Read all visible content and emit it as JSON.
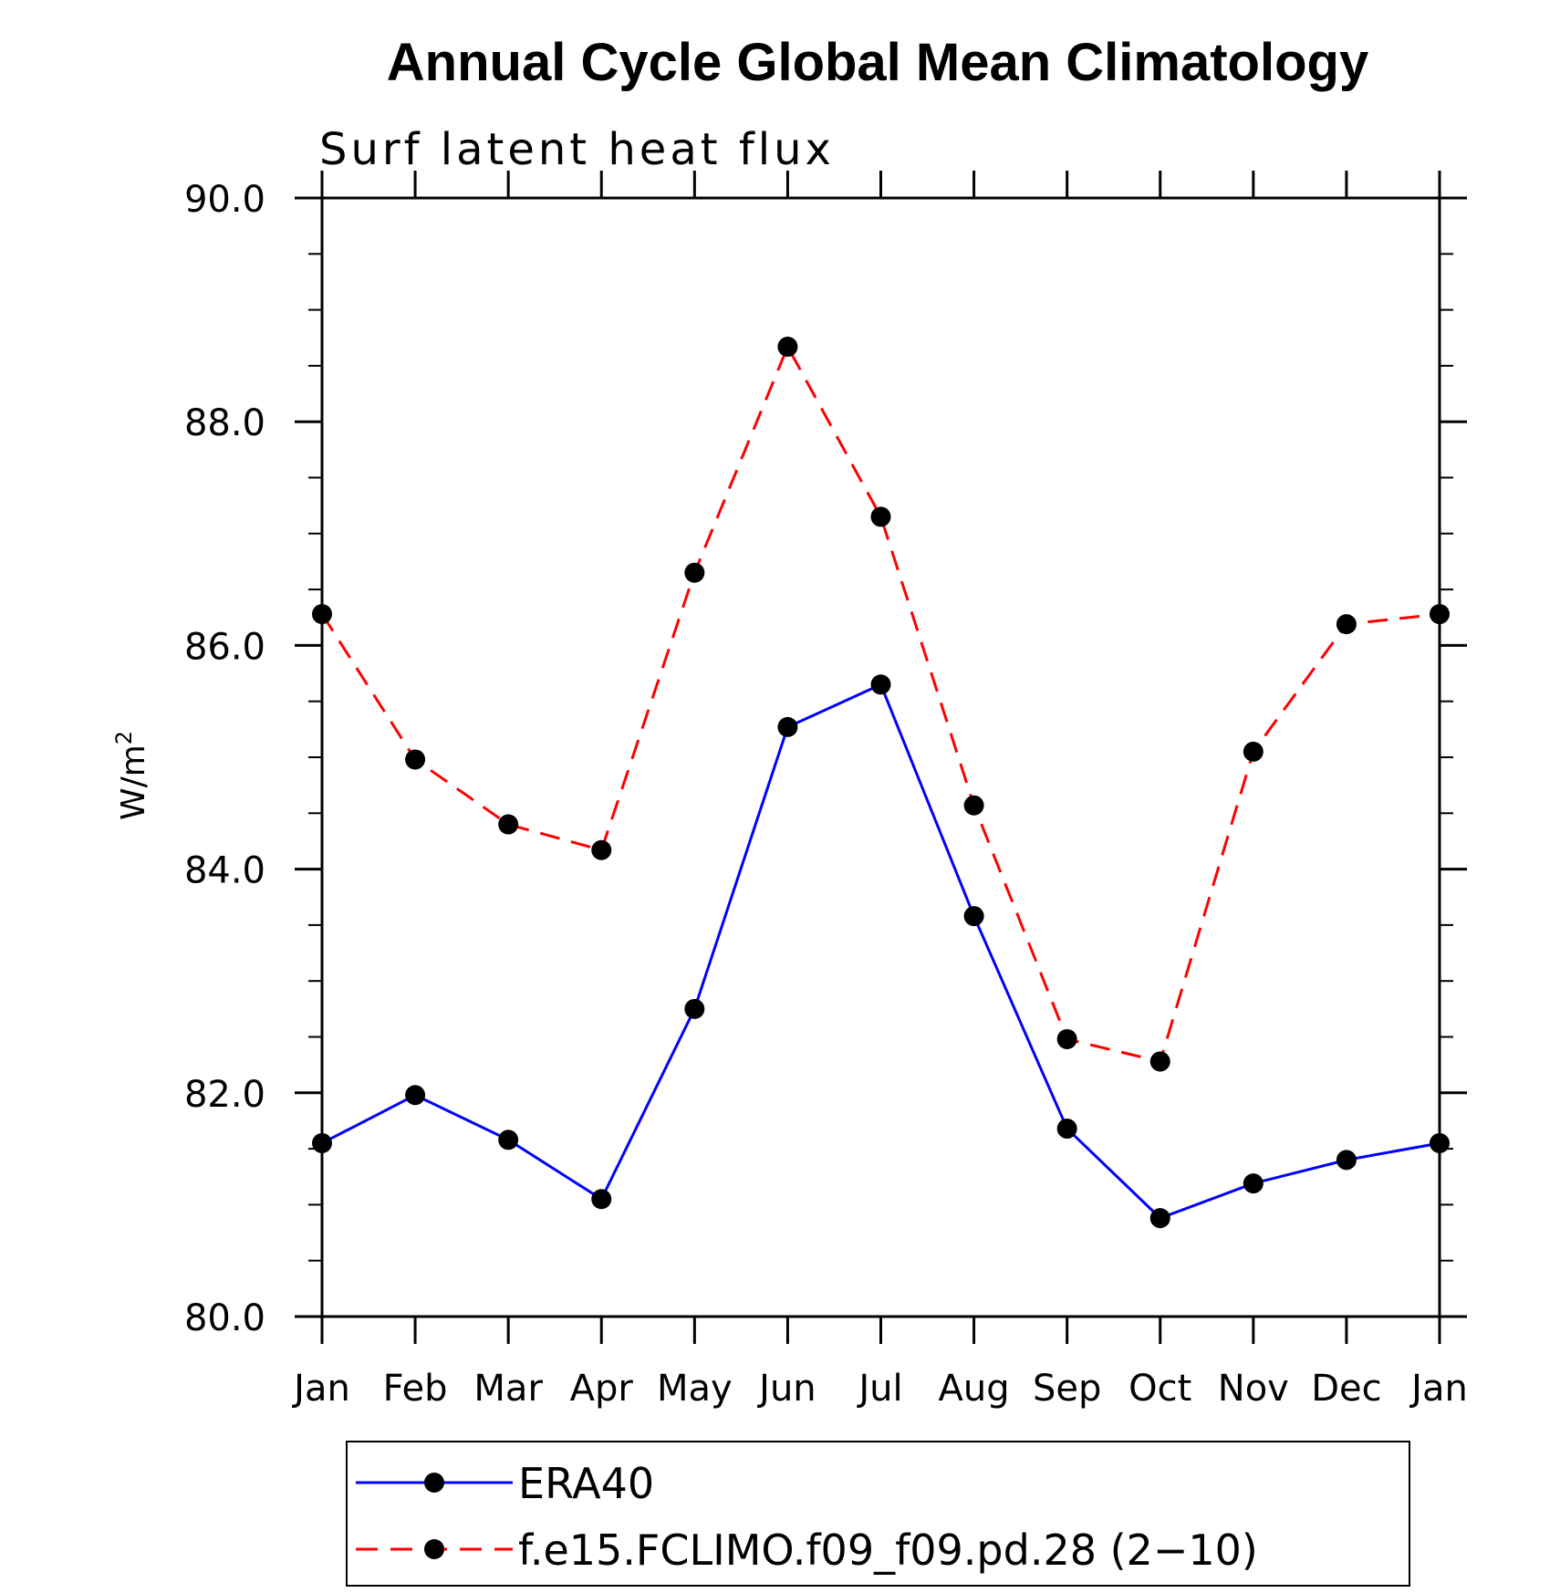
{
  "chart_data": {
    "type": "line",
    "title": "Annual Cycle Global Mean Climatology",
    "subtitle": "Surf latent heat flux",
    "ylabel": "W/m",
    "ylabel_superscript": "2",
    "xlabel": "",
    "categories": [
      "Jan",
      "Feb",
      "Mar",
      "Apr",
      "May",
      "Jun",
      "Jul",
      "Aug",
      "Sep",
      "Oct",
      "Nov",
      "Dec",
      "Jan"
    ],
    "ylim": [
      80.0,
      90.0
    ],
    "yticks": [
      "80.0",
      "82.0",
      "84.0",
      "86.0",
      "88.0",
      "90.0"
    ],
    "yticks_values": [
      80,
      82,
      84,
      86,
      88,
      90
    ],
    "grid": false,
    "legend_position": "bottom",
    "series": [
      {
        "name": "ERA40",
        "color": "#0000ff",
        "style": "solid",
        "marker": "filled-circle",
        "values": [
          81.55,
          81.98,
          81.58,
          81.05,
          82.75,
          85.27,
          85.65,
          83.58,
          81.68,
          80.88,
          81.19,
          81.4,
          81.55
        ]
      },
      {
        "name": "f.e15.FCLIMO.f09_f09.pd.28 (2−10)",
        "color": "#ff0000",
        "style": "dashed",
        "marker": "filled-circle",
        "values": [
          86.28,
          84.98,
          84.4,
          84.17,
          86.65,
          88.67,
          87.15,
          84.57,
          82.48,
          82.28,
          85.05,
          86.19,
          86.28
        ]
      }
    ]
  }
}
